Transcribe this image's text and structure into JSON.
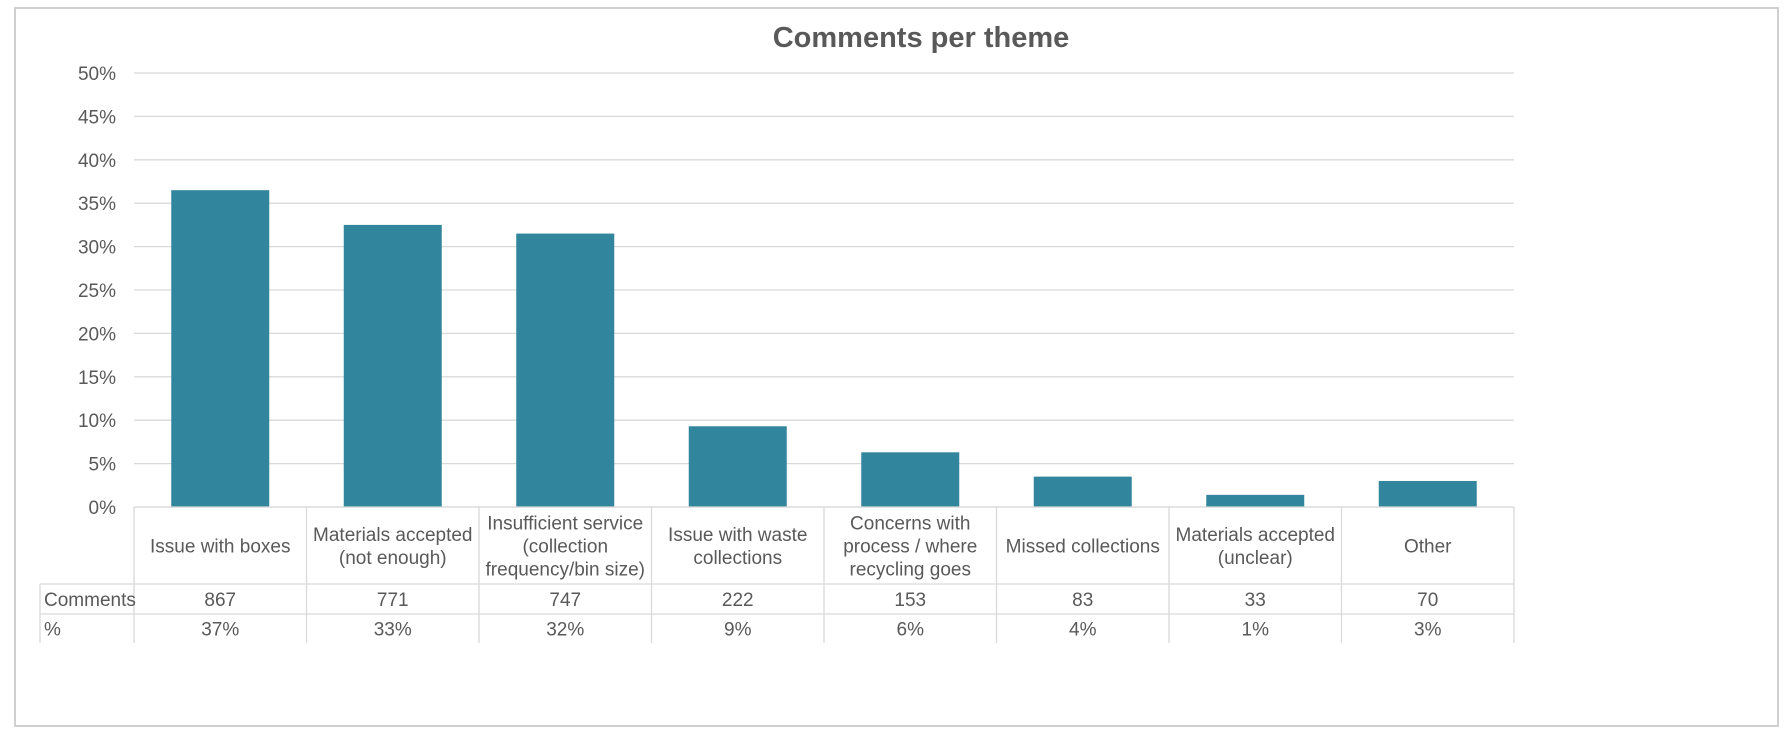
{
  "chart_data": {
    "type": "bar",
    "title": "Comments per theme",
    "xlabel": "",
    "ylabel": "",
    "ylim": [
      0,
      0.5
    ],
    "y_ticks": [
      "0%",
      "5%",
      "10%",
      "15%",
      "20%",
      "25%",
      "30%",
      "35%",
      "40%",
      "45%",
      "50%"
    ],
    "grid": true,
    "colors": {
      "bar": "#31859c",
      "grid": "#d9d9d9",
      "text": "#595959"
    },
    "categories": [
      [
        "Issue with boxes"
      ],
      [
        "Materials accepted",
        "(not enough)"
      ],
      [
        "Insufficient service",
        "(collection",
        "frequency/bin size)"
      ],
      [
        "Issue with waste",
        "collections"
      ],
      [
        "Concerns with",
        "process / where",
        "recycling goes"
      ],
      [
        "Missed collections"
      ],
      [
        "Materials accepted",
        "(unclear)"
      ],
      [
        "Other"
      ]
    ],
    "values": [
      0.365,
      0.325,
      0.315,
      0.093,
      0.063,
      0.035,
      0.014,
      0.03
    ],
    "data_table": {
      "rows": [
        {
          "label": "Comments",
          "values": [
            "867",
            "771",
            "747",
            "222",
            "153",
            "83",
            "33",
            "70"
          ]
        },
        {
          "label": "%",
          "values": [
            "37%",
            "33%",
            "32%",
            "9%",
            "6%",
            "4%",
            "1%",
            "3%"
          ]
        }
      ]
    }
  }
}
